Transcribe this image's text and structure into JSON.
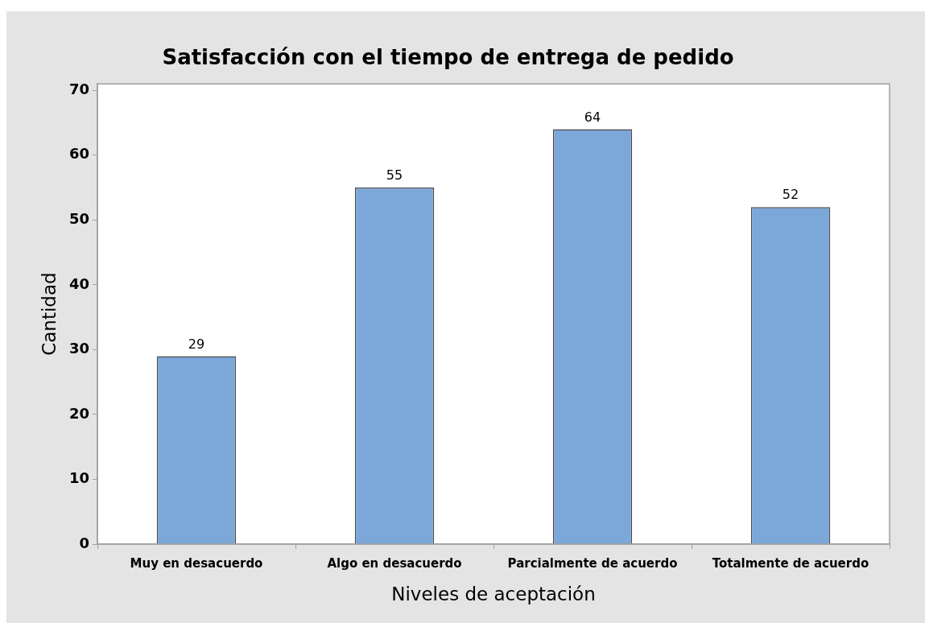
{
  "chart_data": {
    "type": "bar",
    "title": "Satisfacción con el tiempo de entrega de pedido",
    "xlabel": "Niveles de aceptación",
    "ylabel": "Cantidad",
    "categories": [
      "Muy en desacuerdo",
      "Algo en desacuerdo",
      "Parcialmente de acuerdo",
      "Totalmente de acuerdo"
    ],
    "values": [
      29,
      55,
      64,
      52
    ],
    "color": "#7ba7d9",
    "ylim": [
      0,
      71
    ],
    "yticks": [
      0,
      10,
      20,
      30,
      40,
      50,
      60,
      70
    ],
    "grid": false,
    "legend": false,
    "data_labels": true
  }
}
